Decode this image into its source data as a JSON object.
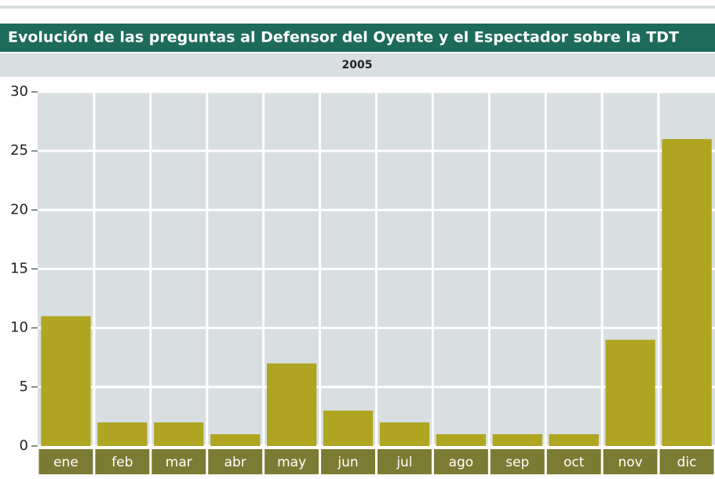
{
  "chart_data": {
    "type": "bar",
    "title": "Evolución de las preguntas al Defensor del Oyente y el Espectador sobre la TDT",
    "subtitle": "2005",
    "categories": [
      "ene",
      "feb",
      "mar",
      "abr",
      "may",
      "jun",
      "jul",
      "ago",
      "sep",
      "oct",
      "nov",
      "dic"
    ],
    "values": [
      11,
      2,
      2,
      1,
      7,
      3,
      2,
      1,
      1,
      1,
      9,
      26
    ],
    "color": "#afa521",
    "ylim": [
      0,
      30
    ],
    "yticks": [
      0,
      5,
      10,
      15,
      20,
      25,
      30
    ],
    "grid": true
  }
}
